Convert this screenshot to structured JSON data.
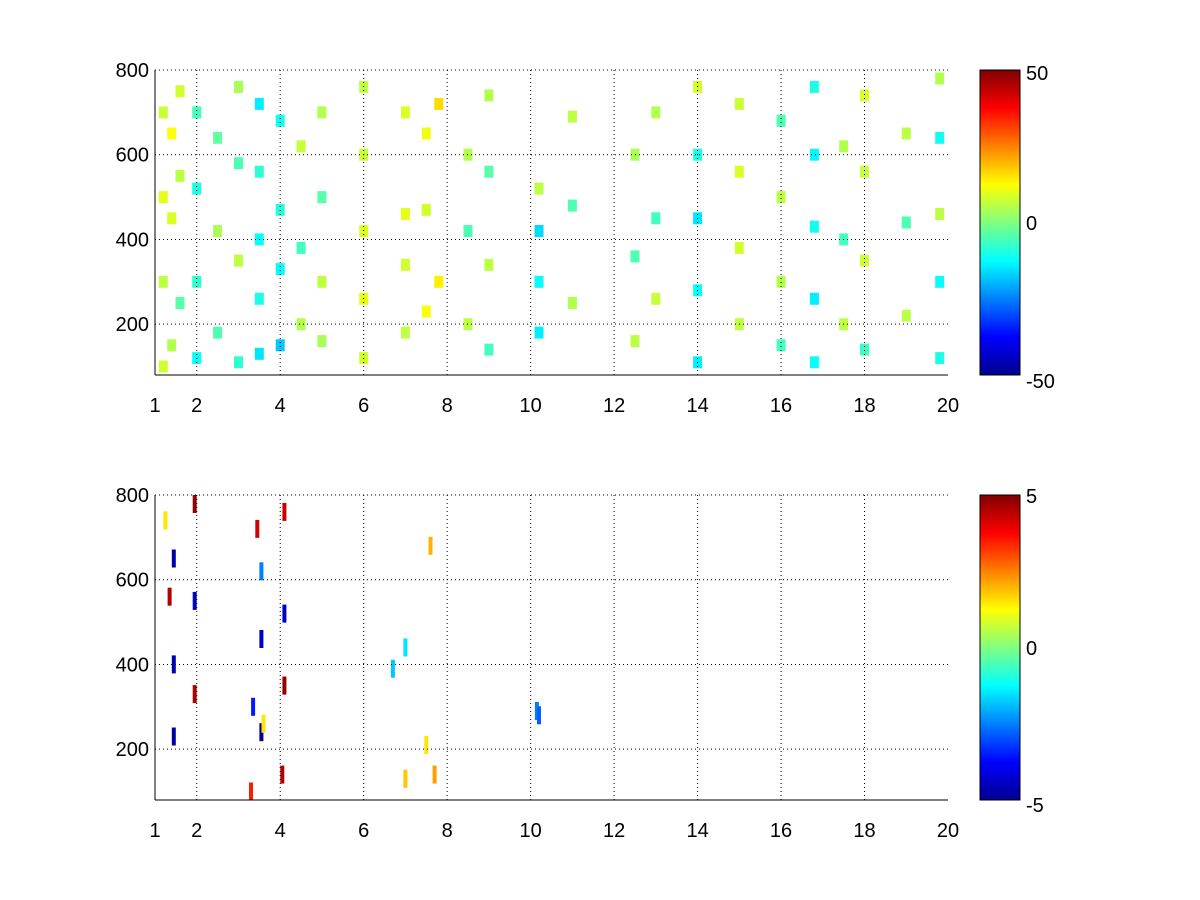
{
  "colormap": [
    "#00008f",
    "#0000ff",
    "#0080ff",
    "#00ffff",
    "#80ff80",
    "#ffff00",
    "#ff8000",
    "#ff0000",
    "#800000"
  ],
  "chart_data": [
    {
      "type": "heatmap",
      "title": "",
      "xlabel": "",
      "ylabel": "",
      "xlim": [
        1,
        20
      ],
      "ylim": [
        80,
        800
      ],
      "grid": true,
      "xticks": [
        1,
        2,
        4,
        6,
        8,
        10,
        12,
        14,
        16,
        18,
        20
      ],
      "yticks": [
        200,
        400,
        600,
        800
      ],
      "colorbar": {
        "min": -50,
        "max": 50,
        "ticks": [
          50,
          0,
          -50
        ]
      },
      "cells": [
        [
          1.2,
          100,
          8
        ],
        [
          1.2,
          300,
          6
        ],
        [
          1.2,
          500,
          10
        ],
        [
          1.2,
          700,
          7
        ],
        [
          1.4,
          150,
          5
        ],
        [
          1.4,
          450,
          9
        ],
        [
          1.4,
          650,
          12
        ],
        [
          1.6,
          250,
          -4
        ],
        [
          1.6,
          550,
          6
        ],
        [
          1.6,
          750,
          8
        ],
        [
          2.0,
          120,
          -12
        ],
        [
          2.0,
          300,
          -8
        ],
        [
          2.0,
          520,
          -10
        ],
        [
          2.0,
          700,
          -6
        ],
        [
          2.5,
          180,
          -5
        ],
        [
          2.5,
          420,
          4
        ],
        [
          2.5,
          640,
          -3
        ],
        [
          3.0,
          110,
          -8
        ],
        [
          3.0,
          350,
          6
        ],
        [
          3.0,
          580,
          -5
        ],
        [
          3.0,
          760,
          4
        ],
        [
          3.5,
          130,
          -15
        ],
        [
          3.5,
          260,
          -10
        ],
        [
          3.5,
          400,
          -12
        ],
        [
          3.5,
          560,
          -8
        ],
        [
          3.5,
          720,
          -14
        ],
        [
          4.0,
          150,
          -18
        ],
        [
          4.0,
          330,
          -12
        ],
        [
          4.0,
          470,
          -9
        ],
        [
          4.0,
          680,
          -11
        ],
        [
          4.5,
          200,
          5
        ],
        [
          4.5,
          380,
          -6
        ],
        [
          4.5,
          620,
          7
        ],
        [
          5.0,
          160,
          4
        ],
        [
          5.0,
          300,
          6
        ],
        [
          5.0,
          500,
          -4
        ],
        [
          5.0,
          700,
          5
        ],
        [
          6.0,
          120,
          8
        ],
        [
          6.0,
          260,
          10
        ],
        [
          6.0,
          420,
          9
        ],
        [
          6.0,
          600,
          7
        ],
        [
          6.0,
          760,
          6
        ],
        [
          7.0,
          180,
          6
        ],
        [
          7.0,
          340,
          8
        ],
        [
          7.0,
          460,
          10
        ],
        [
          7.0,
          700,
          9
        ],
        [
          7.5,
          230,
          12
        ],
        [
          7.5,
          470,
          8
        ],
        [
          7.5,
          650,
          11
        ],
        [
          7.8,
          300,
          14
        ],
        [
          7.8,
          720,
          16
        ],
        [
          8.5,
          200,
          6
        ],
        [
          8.5,
          420,
          -5
        ],
        [
          8.5,
          600,
          5
        ],
        [
          9.0,
          140,
          -6
        ],
        [
          9.0,
          340,
          6
        ],
        [
          9.0,
          560,
          -4
        ],
        [
          9.0,
          740,
          5
        ],
        [
          10.2,
          180,
          -14
        ],
        [
          10.2,
          300,
          -12
        ],
        [
          10.2,
          420,
          -16
        ],
        [
          10.2,
          520,
          6
        ],
        [
          11.0,
          250,
          5
        ],
        [
          11.0,
          480,
          -5
        ],
        [
          11.0,
          690,
          6
        ],
        [
          12.5,
          160,
          6
        ],
        [
          12.5,
          360,
          -5
        ],
        [
          12.5,
          600,
          4
        ],
        [
          13.0,
          260,
          7
        ],
        [
          13.0,
          450,
          -6
        ],
        [
          13.0,
          700,
          5
        ],
        [
          14.0,
          110,
          -14
        ],
        [
          14.0,
          280,
          -12
        ],
        [
          14.0,
          450,
          -15
        ],
        [
          14.0,
          600,
          -10
        ],
        [
          14.0,
          760,
          8
        ],
        [
          15.0,
          200,
          6
        ],
        [
          15.0,
          380,
          8
        ],
        [
          15.0,
          560,
          9
        ],
        [
          15.0,
          720,
          7
        ],
        [
          16.0,
          150,
          -6
        ],
        [
          16.0,
          300,
          5
        ],
        [
          16.0,
          500,
          6
        ],
        [
          16.0,
          680,
          -5
        ],
        [
          16.8,
          110,
          -12
        ],
        [
          16.8,
          260,
          -14
        ],
        [
          16.8,
          430,
          -11
        ],
        [
          16.8,
          600,
          -13
        ],
        [
          16.8,
          760,
          -10
        ],
        [
          17.5,
          200,
          6
        ],
        [
          17.5,
          400,
          -6
        ],
        [
          17.5,
          620,
          5
        ],
        [
          18.0,
          140,
          -7
        ],
        [
          18.0,
          350,
          8
        ],
        [
          18.0,
          560,
          7
        ],
        [
          18.0,
          740,
          9
        ],
        [
          19.0,
          220,
          6
        ],
        [
          19.0,
          440,
          -5
        ],
        [
          19.0,
          650,
          6
        ],
        [
          19.8,
          120,
          -10
        ],
        [
          19.8,
          300,
          -12
        ],
        [
          19.8,
          460,
          6
        ],
        [
          19.8,
          640,
          -11
        ],
        [
          19.8,
          780,
          5
        ]
      ]
    },
    {
      "type": "heatmap",
      "title": "",
      "xlabel": "",
      "ylabel": "",
      "xlim": [
        1,
        20
      ],
      "ylim": [
        80,
        800
      ],
      "grid": true,
      "xticks": [
        1,
        2,
        4,
        6,
        8,
        10,
        12,
        14,
        16,
        18,
        20
      ],
      "yticks": [
        200,
        400,
        600,
        800
      ],
      "colorbar": {
        "min": -5,
        "max": 5,
        "ticks": [
          5,
          0,
          -5
        ]
      },
      "cells": [
        [
          1.25,
          740,
          1.5
        ],
        [
          1.35,
          560,
          4.5
        ],
        [
          1.45,
          230,
          -4.8
        ],
        [
          1.45,
          400,
          -4.6
        ],
        [
          1.45,
          650,
          -4.7
        ],
        [
          1.95,
          330,
          4.6
        ],
        [
          1.95,
          550,
          -4.5
        ],
        [
          1.95,
          780,
          4.8
        ],
        [
          3.35,
          300,
          -3.5
        ],
        [
          3.45,
          720,
          4.2
        ],
        [
          3.55,
          240,
          -4.9
        ],
        [
          3.55,
          460,
          -4.4
        ],
        [
          3.55,
          620,
          -2.5
        ],
        [
          3.6,
          260,
          1.5
        ],
        [
          4.05,
          140,
          4.5
        ],
        [
          4.1,
          350,
          4.8
        ],
        [
          4.1,
          520,
          -4.4
        ],
        [
          4.1,
          760,
          4.3
        ],
        [
          7.0,
          130,
          1.8
        ],
        [
          7.0,
          440,
          -1.5
        ],
        [
          6.7,
          390,
          -1.8
        ],
        [
          7.6,
          680,
          2.0
        ],
        [
          7.7,
          140,
          2.2
        ],
        [
          7.5,
          210,
          1.5
        ],
        [
          10.15,
          290,
          -2.5
        ],
        [
          10.2,
          280,
          -2.8
        ],
        [
          3.3,
          100,
          3.5
        ]
      ]
    }
  ]
}
